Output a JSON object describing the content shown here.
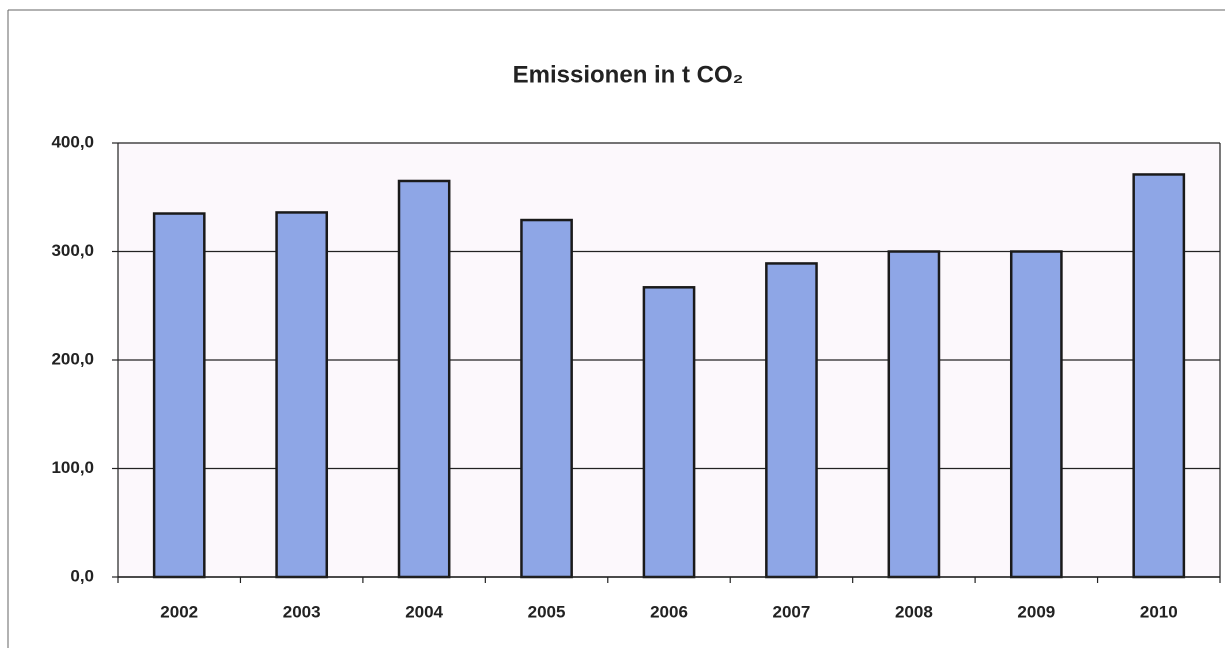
{
  "chart_data": {
    "type": "bar",
    "title": "Emissionen in t CO₂",
    "categories": [
      "2002",
      "2003",
      "2004",
      "2005",
      "2006",
      "2007",
      "2008",
      "2009",
      "2010"
    ],
    "values": [
      335,
      336,
      365,
      329,
      267,
      289,
      300,
      300,
      371
    ],
    "color": "#8ea6e6",
    "ylim": [
      0,
      400
    ],
    "yticks": [
      {
        "value": 0,
        "label": "0,0"
      },
      {
        "value": 100,
        "label": "100,0"
      },
      {
        "value": 200,
        "label": "200,0"
      },
      {
        "value": 300,
        "label": "300,0"
      },
      {
        "value": 400,
        "label": "400,0"
      }
    ],
    "grid": true
  }
}
